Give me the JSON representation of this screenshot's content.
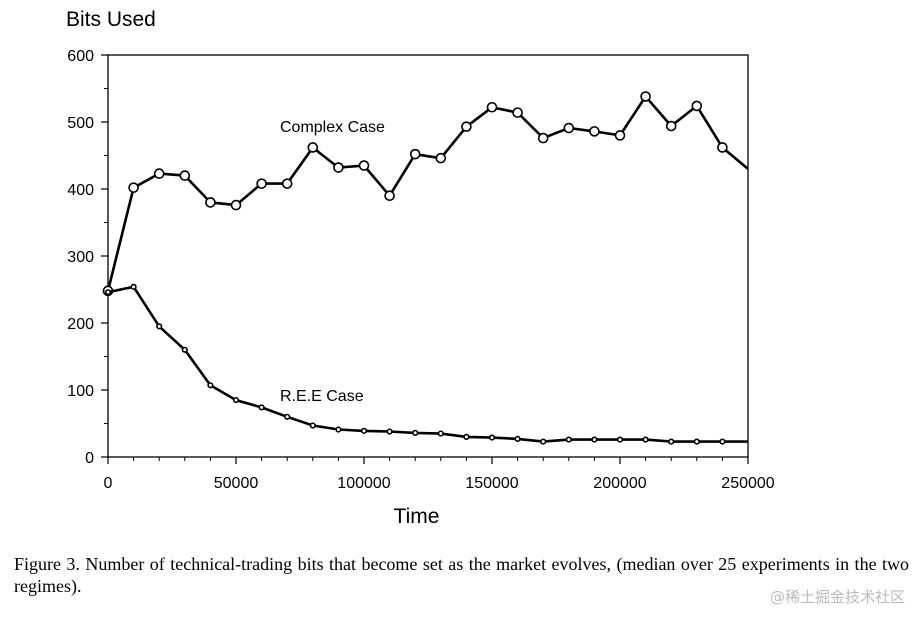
{
  "chart_data": {
    "type": "line",
    "ylabel": "Bits Used",
    "xlabel": "Time",
    "xlim": [
      0,
      250000
    ],
    "ylim": [
      0,
      600
    ],
    "xticks": [
      0,
      50000,
      100000,
      150000,
      200000,
      250000
    ],
    "xtick_labels": [
      "0",
      "50000",
      "100000",
      "150000",
      "200000",
      "250000"
    ],
    "yticks": [
      0,
      100,
      200,
      300,
      400,
      500,
      600
    ],
    "ytick_labels": [
      "0",
      "100",
      "200",
      "300",
      "400",
      "500",
      "600"
    ],
    "series": [
      {
        "name": "Complex Case",
        "x": [
          0,
          10000,
          20000,
          30000,
          40000,
          50000,
          60000,
          70000,
          80000,
          90000,
          100000,
          110000,
          120000,
          130000,
          140000,
          150000,
          160000,
          170000,
          180000,
          190000,
          200000,
          210000,
          220000,
          230000,
          240000,
          250000
        ],
        "values": [
          248,
          402,
          423,
          420,
          380,
          376,
          408,
          408,
          462,
          432,
          435,
          390,
          452,
          446,
          493,
          522,
          514,
          476,
          491,
          486,
          480,
          538,
          494,
          524,
          462,
          430
        ]
      },
      {
        "name": "R.E.E Case",
        "x": [
          0,
          10000,
          20000,
          30000,
          40000,
          50000,
          60000,
          70000,
          80000,
          90000,
          100000,
          110000,
          120000,
          130000,
          140000,
          150000,
          160000,
          170000,
          180000,
          190000,
          200000,
          210000,
          220000,
          230000,
          240000,
          250000
        ],
        "values": [
          246,
          254,
          195,
          160,
          107,
          85,
          74,
          60,
          47,
          41,
          39,
          38,
          36,
          35,
          30,
          29,
          27,
          23,
          26,
          26,
          26,
          26,
          23,
          23,
          23,
          23
        ]
      }
    ]
  },
  "caption": "Figure 3. Number of technical-trading bits that become set as the market evolves, (median over 25 experiments in the two regimes).",
  "watermark": "@稀土掘金技术社区",
  "colors": {
    "line": "#000000",
    "marker_fill": "#ffffff"
  }
}
